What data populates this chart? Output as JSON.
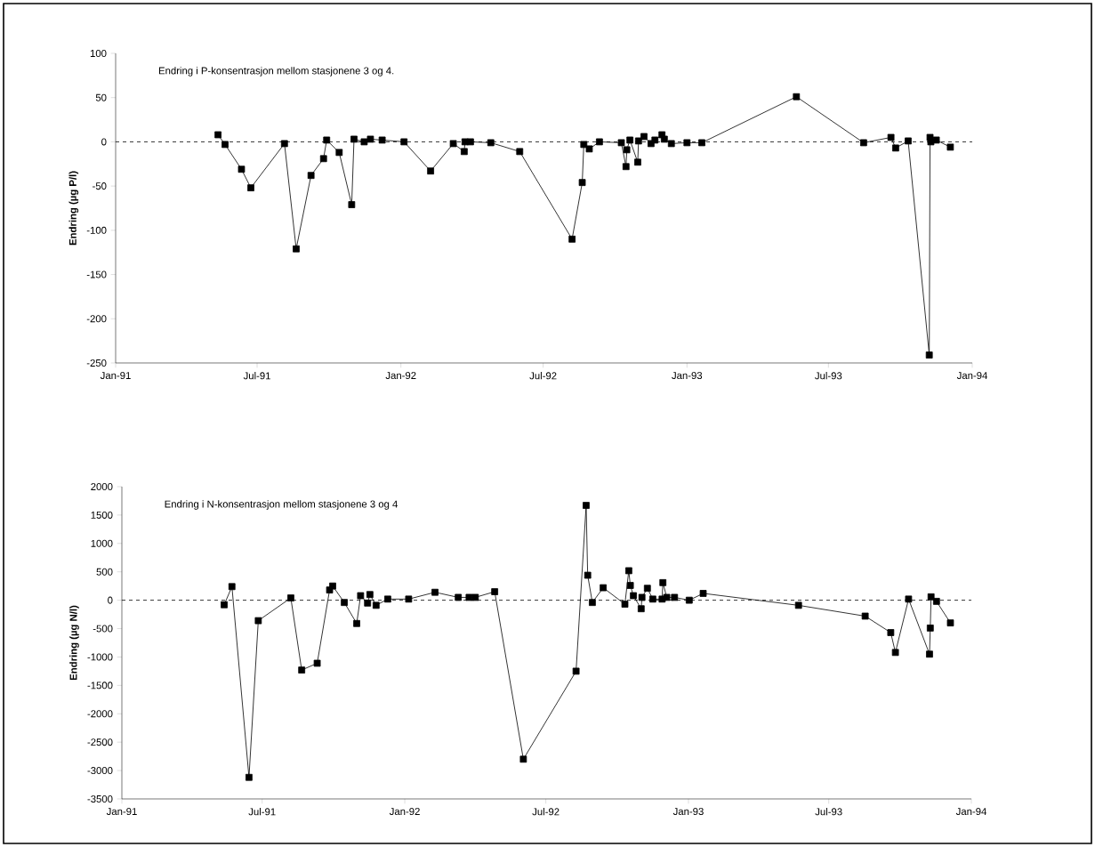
{
  "chart_data": [
    {
      "type": "line",
      "title": "Endring i P-konsentrasjon mellom stasjonene 3 og 4.",
      "ylabel": "Endring (µg P/l)",
      "marker": "square",
      "line_style": "solid",
      "grid": false,
      "x": [
        "1991-05-12",
        "1991-05-21",
        "1991-06-11",
        "1991-06-23",
        "1991-08-05",
        "1991-08-20",
        "1991-09-08",
        "1991-09-24",
        "1991-09-28",
        "1991-10-14",
        "1991-10-30",
        "1991-11-02",
        "1991-11-15",
        "1991-11-23",
        "1991-12-08",
        "1992-01-05",
        "1992-02-08",
        "1992-03-08",
        "1992-03-22",
        "1992-03-23",
        "1992-03-30",
        "1992-04-25",
        "1992-06-01",
        "1992-08-07",
        "1992-08-20",
        "1992-08-22",
        "1992-08-29",
        "1992-09-11",
        "1992-10-09",
        "1992-10-15",
        "1992-10-16",
        "1992-10-20",
        "1992-10-30",
        "1992-10-31",
        "1992-11-07",
        "1992-11-16",
        "1992-11-21",
        "1992-11-30",
        "1992-12-03",
        "1992-12-12",
        "1993-01-01",
        "1993-01-20",
        "1993-05-21",
        "1993-08-15",
        "1993-09-19",
        "1993-09-25",
        "1993-10-11",
        "1993-11-07",
        "1993-11-08",
        "1993-11-09",
        "1993-11-16",
        "1993-12-04"
      ],
      "series": [
        {
          "color": "#000000",
          "values": [
            8,
            -3,
            -31,
            -52,
            -2,
            -121,
            -38,
            -19,
            2,
            -12,
            -71,
            3,
            0,
            3,
            2,
            0,
            -33,
            -2,
            -11,
            0,
            0,
            -1,
            -11,
            -110,
            -46,
            -3,
            -8,
            0,
            -1,
            -28,
            -9,
            2,
            -23,
            1,
            6,
            -2,
            2,
            8,
            3,
            -2,
            -1,
            -1,
            51,
            -1,
            5,
            -7,
            1,
            -241,
            5,
            0,
            2,
            -6
          ]
        }
      ],
      "xlim": [
        "1991-01-01",
        "1994-01-01"
      ],
      "xticks": [
        {
          "value": "1991-01-01",
          "label": "Jan-91"
        },
        {
          "value": "1991-07-01",
          "label": "Jul-91"
        },
        {
          "value": "1992-01-01",
          "label": "Jan-92"
        },
        {
          "value": "1992-07-01",
          "label": "Jul-92"
        },
        {
          "value": "1993-01-01",
          "label": "Jan-93"
        },
        {
          "value": "1993-07-01",
          "label": "Jul-93"
        },
        {
          "value": "1994-01-01",
          "label": "Jan-94"
        }
      ],
      "ylim": [
        -250,
        100
      ],
      "yticks": [
        -250,
        -200,
        -150,
        -100,
        -50,
        0,
        50,
        100
      ],
      "ref_lines": [
        {
          "axis": "y",
          "value": 0,
          "line_style": "dashed",
          "color": "#000000"
        }
      ]
    },
    {
      "type": "line",
      "title": "Endring i N-konsentrasjon mellom stasjonene 3 og 4",
      "ylabel": "Endring (µg N/l)",
      "marker": "square",
      "line_style": "solid",
      "grid": false,
      "x": [
        "1991-05-13",
        "1991-05-23",
        "1991-06-14",
        "1991-06-26",
        "1991-08-07",
        "1991-08-21",
        "1991-09-10",
        "1991-09-26",
        "1991-09-30",
        "1991-10-15",
        "1991-10-31",
        "1991-11-05",
        "1991-11-14",
        "1991-11-17",
        "1991-11-25",
        "1991-12-10",
        "1992-01-06",
        "1992-02-09",
        "1992-03-10",
        "1992-03-24",
        "1992-04-01",
        "1992-04-26",
        "1992-06-02",
        "1992-08-09",
        "1992-08-22",
        "1992-08-24",
        "1992-08-30",
        "1992-09-13",
        "1992-10-11",
        "1992-10-16",
        "1992-10-18",
        "1992-10-22",
        "1992-11-01",
        "1992-11-02",
        "1992-11-09",
        "1992-11-16",
        "1992-11-28",
        "1992-11-29",
        "1992-12-04",
        "1992-12-14",
        "1993-01-02",
        "1993-01-20",
        "1993-05-23",
        "1993-08-17",
        "1993-09-19",
        "1993-09-25",
        "1993-10-12",
        "1993-11-08",
        "1993-11-09",
        "1993-11-10",
        "1993-11-17",
        "1993-12-05"
      ],
      "series": [
        {
          "color": "#000000",
          "values": [
            -80,
            240,
            -3120,
            -360,
            40,
            -1230,
            -1110,
            180,
            250,
            -40,
            -410,
            80,
            -50,
            100,
            -90,
            20,
            20,
            140,
            50,
            50,
            50,
            150,
            -2800,
            -1250,
            1670,
            440,
            -40,
            220,
            -70,
            520,
            260,
            80,
            -150,
            50,
            210,
            20,
            20,
            310,
            50,
            50,
            0,
            120,
            -90,
            -280,
            -570,
            -920,
            20,
            -950,
            -490,
            60,
            -20,
            -400
          ]
        }
      ],
      "xlim": [
        "1991-01-01",
        "1994-01-01"
      ],
      "xticks": [
        {
          "value": "1991-01-01",
          "label": "Jan-91"
        },
        {
          "value": "1991-07-01",
          "label": "Jul-91"
        },
        {
          "value": "1992-01-01",
          "label": "Jan-92"
        },
        {
          "value": "1992-07-01",
          "label": "Jul-92"
        },
        {
          "value": "1993-01-01",
          "label": "Jan-93"
        },
        {
          "value": "1993-07-01",
          "label": "Jul-93"
        },
        {
          "value": "1994-01-01",
          "label": "Jan-94"
        }
      ],
      "ylim": [
        -3500,
        2000
      ],
      "yticks": [
        -3500,
        -3000,
        -2500,
        -2000,
        -1500,
        -1000,
        -500,
        0,
        500,
        1000,
        1500,
        2000
      ],
      "ref_lines": [
        {
          "axis": "y",
          "value": 0,
          "line_style": "dashed",
          "color": "#000000"
        }
      ]
    }
  ]
}
